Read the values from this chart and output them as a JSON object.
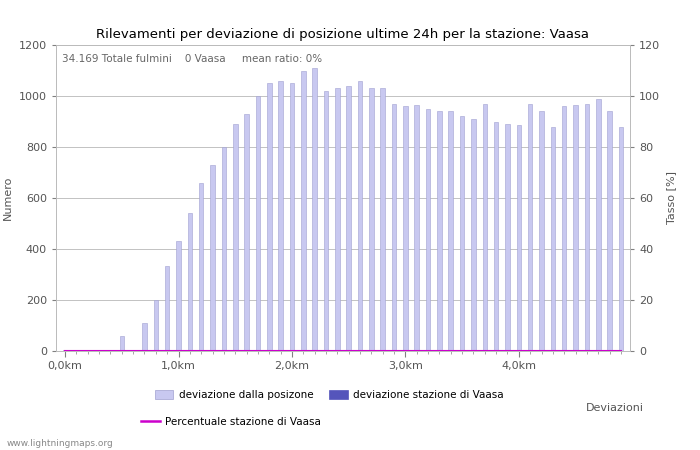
{
  "title": "Rilevamenti per deviazione di posizione ultime 24h per la stazione: Vaasa",
  "subtitle": "34.169 Totale fulmini    0 Vaasa     mean ratio: 0%",
  "ylabel_left": "Numero",
  "ylabel_right": "Tasso [%]",
  "xlabel": "Deviazioni",
  "watermark": "www.lightningmaps.org",
  "xtick_labels": [
    "0,0km",
    "1,0km",
    "2,0km",
    "3,0km",
    "4,0km"
  ],
  "xtick_positions": [
    0,
    10,
    20,
    30,
    40
  ],
  "ylim_left": [
    0,
    1200
  ],
  "ylim_right": [
    0,
    120
  ],
  "bar_values": [
    5,
    0,
    0,
    0,
    0,
    60,
    0,
    110,
    200,
    335,
    430,
    540,
    660,
    730,
    800,
    890,
    930,
    1000,
    1050,
    1060,
    1050,
    1100,
    1110,
    1020,
    1030,
    1040,
    1060,
    1030,
    1030,
    970,
    960,
    965,
    950,
    940,
    940,
    920,
    910,
    970,
    900,
    890,
    885,
    970,
    940,
    880,
    960,
    965,
    970,
    990,
    940,
    880
  ],
  "bar_color": "#c8c8f0",
  "bar_edge_color": "#a0a0d0",
  "vaasa_bar_color": "#5555bb",
  "vaasa_values": [
    0,
    0,
    0,
    0,
    0,
    0,
    0,
    0,
    0,
    0,
    0,
    0,
    0,
    0,
    0,
    0,
    0,
    0,
    0,
    0,
    0,
    0,
    0,
    0,
    0,
    0,
    0,
    0,
    0,
    0,
    0,
    0,
    0,
    0,
    0,
    0,
    0,
    0,
    0,
    0,
    0,
    0,
    0,
    0,
    0,
    0,
    0,
    0,
    0,
    0
  ],
  "percentuale_values": [
    0,
    0,
    0,
    0,
    0,
    0,
    0,
    0,
    0,
    0,
    0,
    0,
    0,
    0,
    0,
    0,
    0,
    0,
    0,
    0,
    0,
    0,
    0,
    0,
    0,
    0,
    0,
    0,
    0,
    0,
    0,
    0,
    0,
    0,
    0,
    0,
    0,
    0,
    0,
    0,
    0,
    0,
    0,
    0,
    0,
    0,
    0,
    0,
    0,
    0
  ],
  "percentuale_color": "#cc00cc",
  "grid_color": "#aaaaaa",
  "background_color": "#ffffff",
  "legend_label_light": "deviazione dalla posizone",
  "legend_label_dark": "deviazione stazione di Vaasa",
  "legend_label_line": "Percentuale stazione di Vaasa",
  "tick_color": "#555555",
  "label_color": "#555555"
}
